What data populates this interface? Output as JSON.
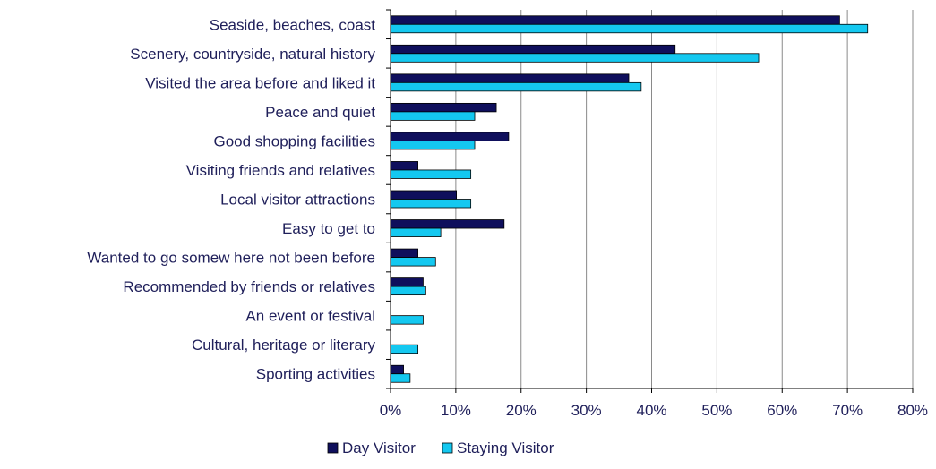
{
  "chart_data": {
    "type": "bar",
    "orientation": "horizontal",
    "categories": [
      "Seaside, beaches, coast",
      "Scenery, countryside, natural history",
      "Visited the area before and liked it",
      "Peace and quiet",
      "Good shopping facilities",
      "Visiting friends and relatives",
      "Local visitor attractions",
      "Easy to get to",
      "Wanted to go somew here not been before",
      "Recommended by friends or relatives",
      "An event or festival",
      "Cultural, heritage or literary",
      "Sporting activities"
    ],
    "series": [
      {
        "name": "Day Visitor",
        "color": "#0f0f5c",
        "values": [
          68.8,
          43.6,
          36.5,
          16.2,
          18.1,
          4.2,
          10.1,
          17.4,
          4.2,
          5.0,
          0,
          0,
          2.0
        ]
      },
      {
        "name": "Staying Visitor",
        "color": "#14c8f0",
        "values": [
          73.1,
          56.4,
          38.4,
          12.9,
          12.9,
          12.3,
          12.3,
          7.7,
          6.9,
          5.4,
          5.0,
          4.2,
          3.0
        ]
      }
    ],
    "xlim": [
      0,
      80
    ],
    "xticks": [
      "0%",
      "10%",
      "20%",
      "30%",
      "40%",
      "50%",
      "60%",
      "70%",
      "80%"
    ],
    "grid": "vertical",
    "legend": "bottom"
  }
}
